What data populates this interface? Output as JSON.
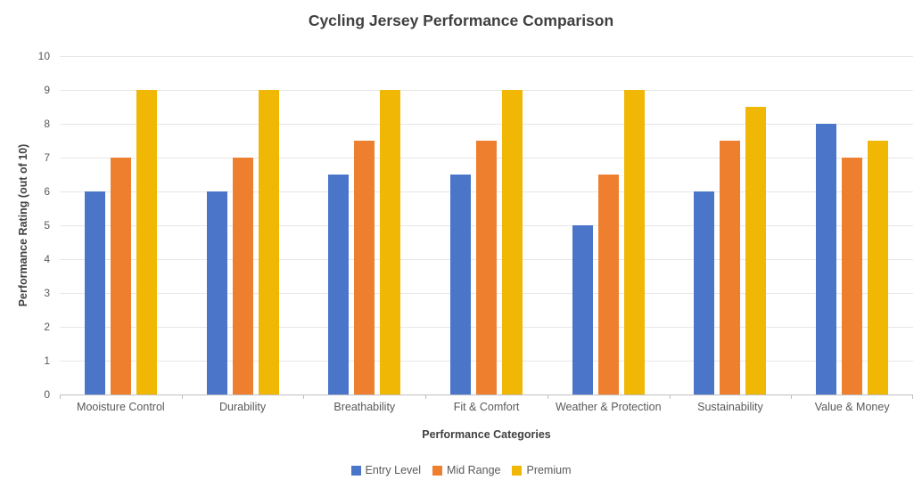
{
  "chart_data": {
    "type": "bar",
    "title": "Cycling Jersey Performance Comparison",
    "xlabel": "Performance Categories",
    "ylabel": "Performance Rating (out of 10)",
    "categories": [
      "Mooisture Control",
      "Durability",
      "Breathability",
      "Fit & Comfort",
      "Weather & Protection",
      "Sustainability",
      "Value & Money"
    ],
    "series": [
      {
        "name": "Entry Level",
        "color": "#4A75C9",
        "values": [
          6,
          6,
          6.5,
          6.5,
          5,
          6,
          8
        ]
      },
      {
        "name": "Mid Range",
        "color": "#EE7F2F",
        "values": [
          7,
          7,
          7.5,
          7.5,
          6.5,
          7.5,
          7
        ]
      },
      {
        "name": "Premium",
        "color": "#F0B705",
        "values": [
          9,
          9,
          9,
          9,
          9,
          8.5,
          7.5
        ]
      }
    ],
    "ylim": [
      0,
      10
    ],
    "yticks": [
      0,
      1,
      2,
      3,
      4,
      5,
      6,
      7,
      8,
      9,
      10
    ],
    "grid": true,
    "legend_position": "bottom"
  },
  "style": {
    "grid_color": "#E7E7E7",
    "axis_color": "#BFBFBF",
    "tick_label_color": "#595959",
    "title_color": "#404040"
  }
}
